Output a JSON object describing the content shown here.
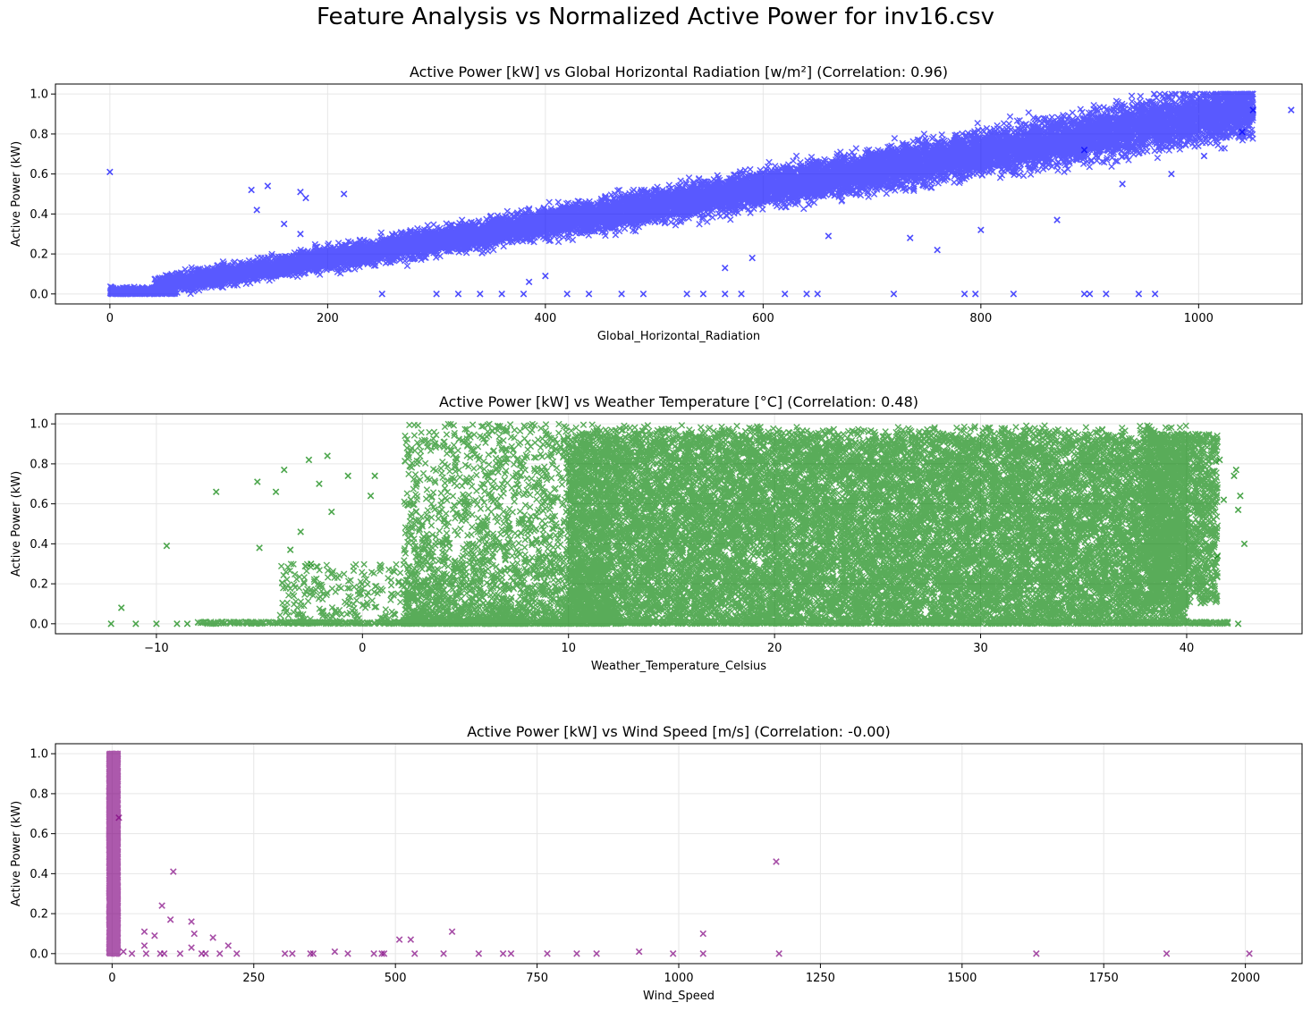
{
  "suptitle": "Feature Analysis vs Normalized Active Power for inv16.csv",
  "chart_data": [
    {
      "type": "scatter",
      "title": "Active Power [kW] vs Global Horizontal Radiation [w/m²] (Correlation: 0.96)",
      "xlabel": "Global_Horizontal_Radiation",
      "ylabel": "Active Power (kW)",
      "xlim": [
        -50,
        1095
      ],
      "ylim": [
        -0.05,
        1.05
      ],
      "xticks": [
        0,
        200,
        400,
        600,
        800,
        1000
      ],
      "yticks": [
        0.0,
        0.2,
        0.4,
        0.6,
        0.8,
        1.0
      ],
      "color": "#0000ff",
      "marker": "x",
      "grid": true,
      "trend": {
        "slope": 0.00088,
        "spread": 0.08,
        "xmax": 1050
      },
      "points": [
        [
          0,
          0.61
        ],
        [
          130,
          0.52
        ],
        [
          145,
          0.54
        ],
        [
          135,
          0.42
        ],
        [
          175,
          0.51
        ],
        [
          180,
          0.48
        ],
        [
          215,
          0.5
        ],
        [
          160,
          0.35
        ],
        [
          175,
          0.3
        ],
        [
          735,
          0.28
        ],
        [
          760,
          0.22
        ],
        [
          800,
          0.32
        ],
        [
          660,
          0.29
        ],
        [
          590,
          0.18
        ],
        [
          565,
          0.13
        ],
        [
          895,
          0.72
        ],
        [
          975,
          0.6
        ],
        [
          1005,
          0.69
        ],
        [
          1085,
          0.92
        ],
        [
          1050,
          0.92
        ],
        [
          870,
          0.37
        ],
        [
          930,
          0.55
        ],
        [
          1040,
          0.81
        ],
        [
          385,
          0.06
        ],
        [
          400,
          0.09
        ],
        [
          250,
          0.0
        ],
        [
          300,
          0.0
        ],
        [
          320,
          0.0
        ],
        [
          340,
          0.0
        ],
        [
          360,
          0.0
        ],
        [
          380,
          0.0
        ],
        [
          420,
          0.0
        ],
        [
          440,
          0.0
        ],
        [
          470,
          0.0
        ],
        [
          490,
          0.0
        ],
        [
          530,
          0.0
        ],
        [
          545,
          0.0
        ],
        [
          565,
          0.0
        ],
        [
          580,
          0.0
        ],
        [
          620,
          0.0
        ],
        [
          640,
          0.0
        ],
        [
          650,
          0.0
        ],
        [
          720,
          0.0
        ],
        [
          785,
          0.0
        ],
        [
          795,
          0.0
        ],
        [
          830,
          0.0
        ],
        [
          895,
          0.0
        ],
        [
          900,
          0.0
        ],
        [
          915,
          0.0
        ],
        [
          945,
          0.0
        ],
        [
          960,
          0.0
        ]
      ]
    },
    {
      "type": "scatter",
      "title": "Active Power [kW] vs Weather Temperature [°C] (Correlation: 0.48)",
      "xlabel": "Weather_Temperature_Celsius",
      "ylabel": "Active Power (kW)",
      "xlim": [
        -14.9,
        45.6
      ],
      "ylim": [
        -0.05,
        1.05
      ],
      "xticks": [
        -10,
        0,
        10,
        20,
        30,
        40
      ],
      "yticks": [
        0.0,
        0.2,
        0.4,
        0.6,
        0.8,
        1.0
      ],
      "color": "#008000",
      "marker": "x",
      "grid": true,
      "points": [
        [
          -9.5,
          0.39
        ],
        [
          -11.7,
          0.08
        ],
        [
          -7.1,
          0.66
        ],
        [
          -5.1,
          0.71
        ],
        [
          -4.2,
          0.66
        ],
        [
          -3.8,
          0.77
        ],
        [
          -3.0,
          0.46
        ],
        [
          -2.6,
          0.82
        ],
        [
          -2.1,
          0.7
        ],
        [
          -1.7,
          0.84
        ],
        [
          -0.7,
          0.74
        ],
        [
          0.6,
          0.74
        ],
        [
          0.4,
          0.64
        ],
        [
          -1.5,
          0.56
        ],
        [
          -2.5,
          0.3
        ],
        [
          -5.0,
          0.38
        ],
        [
          -3.5,
          0.37
        ],
        [
          -12.2,
          0.0
        ],
        [
          -11,
          0.0
        ],
        [
          -10,
          0.0
        ],
        [
          -9,
          0.0
        ],
        [
          -8.5,
          0.0
        ],
        [
          42.8,
          0.4
        ],
        [
          42.6,
          0.64
        ],
        [
          42.5,
          0.57
        ],
        [
          42.4,
          0.77
        ],
        [
          41.6,
          0.82
        ],
        [
          41.5,
          0.34
        ],
        [
          41.8,
          0.62
        ],
        [
          42.5,
          0.0
        ],
        [
          42.3,
          0.74
        ]
      ]
    },
    {
      "type": "scatter",
      "title": "Active Power [kW] vs Wind Speed [m/s] (Correlation: -0.00)",
      "xlabel": "Wind_Speed",
      "ylabel": "Active Power (kW)",
      "xlim": [
        -100,
        2100
      ],
      "ylim": [
        -0.05,
        1.05
      ],
      "xticks": [
        0,
        250,
        500,
        750,
        1000,
        1250,
        1500,
        1750,
        2000
      ],
      "yticks": [
        0.0,
        0.2,
        0.4,
        0.6,
        0.8,
        1.0
      ],
      "color": "#800080",
      "marker": "x",
      "grid": true,
      "points": [
        [
          12,
          0.68
        ],
        [
          108,
          0.41
        ],
        [
          88,
          0.24
        ],
        [
          1172,
          0.46
        ],
        [
          1043,
          0.1
        ],
        [
          600,
          0.11
        ],
        [
          527,
          0.07
        ],
        [
          507,
          0.07
        ],
        [
          140,
          0.16
        ],
        [
          103,
          0.17
        ],
        [
          57,
          0.11
        ],
        [
          75,
          0.09
        ],
        [
          178,
          0.08
        ],
        [
          205,
          0.04
        ],
        [
          145,
          0.1
        ],
        [
          140,
          0.03
        ],
        [
          57,
          0.04
        ],
        [
          20,
          0.01
        ],
        [
          35,
          0.0
        ],
        [
          60,
          0.0
        ],
        [
          85,
          0.0
        ],
        [
          92,
          0.0
        ],
        [
          120,
          0.0
        ],
        [
          158,
          0.0
        ],
        [
          165,
          0.0
        ],
        [
          190,
          0.0
        ],
        [
          220,
          0.0
        ],
        [
          305,
          0.0
        ],
        [
          318,
          0.0
        ],
        [
          350,
          0.0
        ],
        [
          355,
          0.0
        ],
        [
          393,
          0.01
        ],
        [
          416,
          0.0
        ],
        [
          462,
          0.0
        ],
        [
          476,
          0.0
        ],
        [
          480,
          0.0
        ],
        [
          534,
          0.0
        ],
        [
          585,
          0.0
        ],
        [
          647,
          0.0
        ],
        [
          690,
          0.0
        ],
        [
          704,
          0.0
        ],
        [
          768,
          0.0
        ],
        [
          820,
          0.0
        ],
        [
          855,
          0.0
        ],
        [
          930,
          0.01
        ],
        [
          990,
          0.0
        ],
        [
          1043,
          0.0
        ],
        [
          1177,
          0.0
        ],
        [
          1631,
          0.0
        ],
        [
          1861,
          0.0
        ],
        [
          2007,
          0.0
        ]
      ]
    }
  ]
}
